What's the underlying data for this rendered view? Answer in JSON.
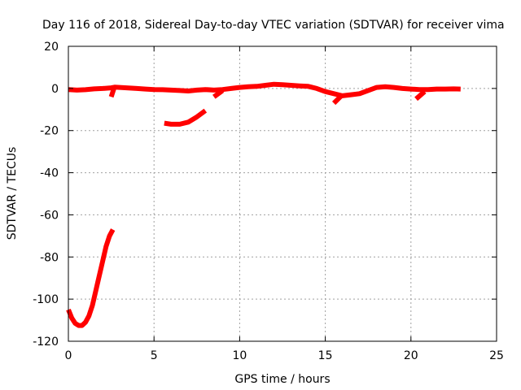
{
  "chart_data": {
    "type": "line",
    "title": "Day 116 of 2018, Sidereal Day-to-day VTEC variation (SDTVAR) for receiver vima",
    "xlabel": "GPS time / hours",
    "ylabel": "SDTVAR / TECUs",
    "xlim": [
      0,
      25
    ],
    "ylim": [
      -120,
      20
    ],
    "xticks": [
      0,
      5,
      10,
      15,
      20,
      25
    ],
    "yticks": [
      20,
      0,
      -20,
      -40,
      -60,
      -80,
      -100,
      -120
    ],
    "grid": true,
    "series_color": "#ff0000",
    "series": [
      {
        "name": "segment-1",
        "x": [
          0.0,
          0.2,
          0.4,
          0.6,
          0.8,
          1.0,
          1.2,
          1.4,
          1.6,
          1.8,
          2.0,
          2.2,
          2.4,
          2.6
        ],
        "y": [
          -105,
          -109,
          -111.5,
          -112.5,
          -112.5,
          -111,
          -108,
          -103,
          -96,
          -89,
          -82,
          -75,
          -70,
          -67
        ]
      },
      {
        "name": "segment-2",
        "x": [
          0.0,
          0.5,
          1.0,
          1.5,
          2.0,
          2.5,
          2.7,
          3.0,
          3.5,
          4.0,
          4.5,
          5.0,
          5.5,
          6.0,
          6.5,
          7.0,
          7.5,
          8.0,
          8.5,
          9.0,
          9.5,
          10.0,
          10.5,
          11.0,
          11.5,
          12.0,
          12.5,
          13.0,
          13.5,
          14.0,
          14.5,
          15.0,
          15.5,
          16.0,
          16.5,
          17.0,
          17.5,
          18.0,
          18.5,
          19.0,
          19.5,
          20.0,
          20.5,
          21.0,
          21.5,
          22.0,
          22.5,
          22.9
        ],
        "y": [
          -0.5,
          -0.8,
          -0.6,
          -0.2,
          0.0,
          0.3,
          0.6,
          0.5,
          0.2,
          0.0,
          -0.3,
          -0.5,
          -0.6,
          -0.8,
          -1.0,
          -1.2,
          -0.8,
          -0.5,
          -0.8,
          -0.5,
          0.0,
          0.5,
          0.8,
          1.0,
          1.5,
          2.0,
          1.8,
          1.5,
          1.2,
          1.0,
          0.0,
          -1.5,
          -2.5,
          -3.5,
          -3.0,
          -2.5,
          -1.0,
          0.5,
          0.8,
          0.5,
          0.0,
          -0.3,
          -0.5,
          -0.5,
          -0.3,
          -0.3,
          -0.2,
          -0.3
        ]
      },
      {
        "name": "segment-3",
        "x": [
          5.6,
          6.0,
          6.5,
          7.0,
          7.5,
          8.0
        ],
        "y": [
          -16.5,
          -17.0,
          -17.0,
          -16.0,
          -13.5,
          -10.5
        ]
      },
      {
        "name": "spike-1",
        "x": [
          2.5,
          2.7
        ],
        "y": [
          -4,
          1
        ]
      },
      {
        "name": "spike-2",
        "x": [
          8.5,
          9.0
        ],
        "y": [
          -4,
          -1
        ]
      },
      {
        "name": "spike-3",
        "x": [
          15.5,
          16.0
        ],
        "y": [
          -7,
          -3
        ]
      },
      {
        "name": "spike-4",
        "x": [
          20.3,
          20.8
        ],
        "y": [
          -5,
          -1.5
        ]
      }
    ]
  }
}
